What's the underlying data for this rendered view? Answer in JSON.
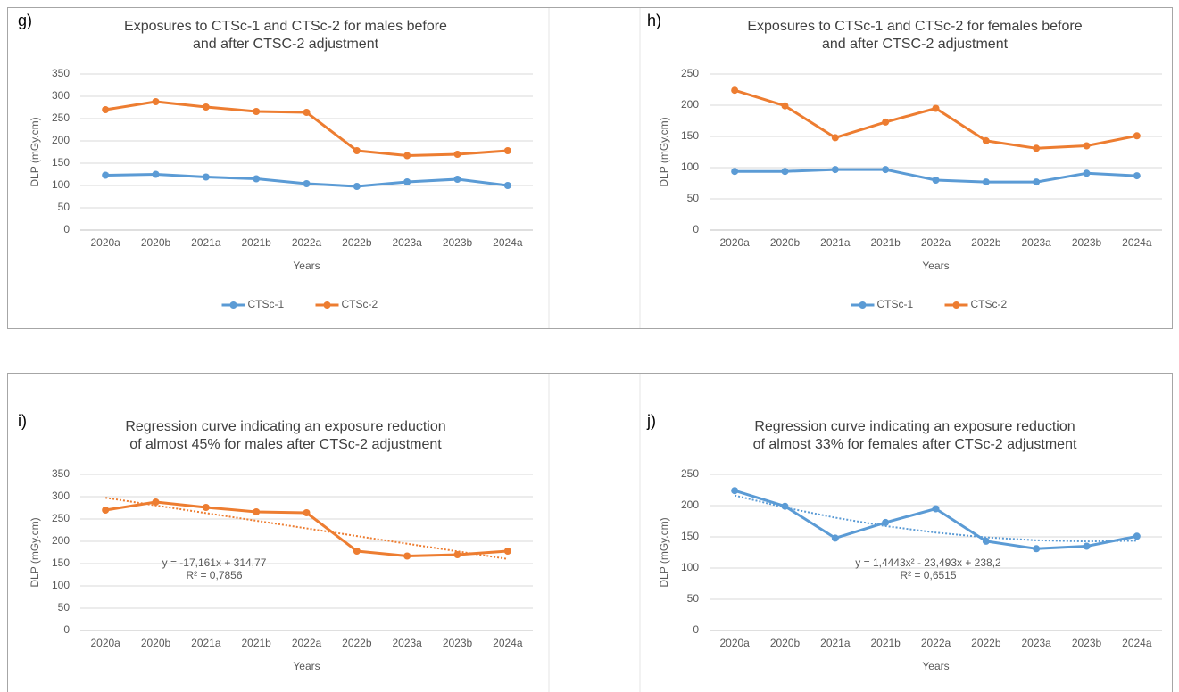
{
  "chart_data": [
    {
      "type": "line",
      "panel_label": "g)",
      "title": [
        "Exposures to CTSc-1 and CTSc-2 for males before",
        "and after CTSC-2 adjustment"
      ],
      "y_label": "DLP (mGy.cm)",
      "x_label": "Years",
      "categories": [
        "2020a",
        "2020b",
        "2021a",
        "2021b",
        "2022a",
        "2022b",
        "2023a",
        "2023b",
        "2024a"
      ],
      "series": [
        {
          "name": "CTSc-1",
          "color": "#5b9bd5",
          "values": [
            123,
            125,
            119,
            115,
            104,
            98,
            108,
            114,
            100
          ]
        },
        {
          "name": "CTSc-2",
          "color": "#ed7d31",
          "values": [
            270,
            288,
            276,
            266,
            264,
            178,
            167,
            170,
            178
          ]
        }
      ],
      "ylim": [
        0,
        350
      ],
      "yticks": [
        0,
        50,
        100,
        150,
        200,
        250,
        300,
        350
      ],
      "grid": true,
      "legend": "bottom"
    },
    {
      "type": "line",
      "panel_label": "h)",
      "title": [
        "Exposures to CTSc-1 and CTSc-2 for females before",
        "and after CTSC-2 adjustment"
      ],
      "y_label": "DLP (mGy.cm)",
      "x_label": "Years",
      "categories": [
        "2020a",
        "2020b",
        "2021a",
        "2021b",
        "2022a",
        "2022b",
        "2023a",
        "2023b",
        "2024a"
      ],
      "series": [
        {
          "name": "CTSc-1",
          "color": "#5b9bd5",
          "values": [
            94,
            94,
            97,
            97,
            80,
            77,
            77,
            91,
            87
          ]
        },
        {
          "name": "CTSc-2",
          "color": "#ed7d31",
          "values": [
            224,
            199,
            148,
            173,
            195,
            143,
            131,
            135,
            151
          ]
        }
      ],
      "ylim": [
        0,
        250
      ],
      "yticks": [
        0,
        50,
        100,
        150,
        200,
        250
      ],
      "grid": true,
      "legend": "bottom"
    },
    {
      "type": "line",
      "panel_label": "i)",
      "title": [
        "Regression curve indicating an exposure reduction",
        "of almost 45% for males after CTSc-2 adjustment"
      ],
      "y_label": "DLP (mGy.cm)",
      "x_label": "Years",
      "categories": [
        "2020a",
        "2020b",
        "2021a",
        "2021b",
        "2022a",
        "2022b",
        "2023a",
        "2023b",
        "2024a"
      ],
      "series": [
        {
          "color": "#ed7d31",
          "values": [
            270,
            288,
            276,
            266,
            264,
            178,
            167,
            170,
            178
          ]
        }
      ],
      "trendline": {
        "color": "#ed7d31",
        "values": [
          297.6,
          280.4,
          263.3,
          246.1,
          229.0,
          211.8,
          194.6,
          177.5,
          160.3
        ],
        "equation": "y = -17,161x + 314,77",
        "r_squared": "R² = 0,7856"
      },
      "ylim": [
        0,
        350
      ],
      "yticks": [
        0,
        50,
        100,
        150,
        200,
        250,
        300,
        350
      ],
      "grid": true
    },
    {
      "type": "line",
      "panel_label": "j)",
      "title": [
        "Regression curve indicating an exposure reduction",
        "of almost 33% for females after CTSc-2 adjustment"
      ],
      "y_label": "DLP (mGy.cm)",
      "x_label": "Years",
      "categories": [
        "2020a",
        "2020b",
        "2021a",
        "2021b",
        "2022a",
        "2022b",
        "2023a",
        "2023b",
        "2024a"
      ],
      "series": [
        {
          "color": "#5b9bd5",
          "values": [
            224,
            199,
            148,
            173,
            195,
            143,
            131,
            135,
            151
          ]
        }
      ],
      "trendline": {
        "color": "#5b9bd5",
        "values": [
          216.2,
          197.0,
          180.7,
          167.3,
          156.8,
          149.2,
          144.5,
          142.7,
          143.8
        ],
        "equation": "y = 1,4443x² - 23,493x + 238,2",
        "r_squared": "R² = 0,6515"
      },
      "ylim": [
        0,
        250
      ],
      "yticks": [
        0,
        50,
        100,
        150,
        200,
        250
      ],
      "grid": true
    }
  ]
}
